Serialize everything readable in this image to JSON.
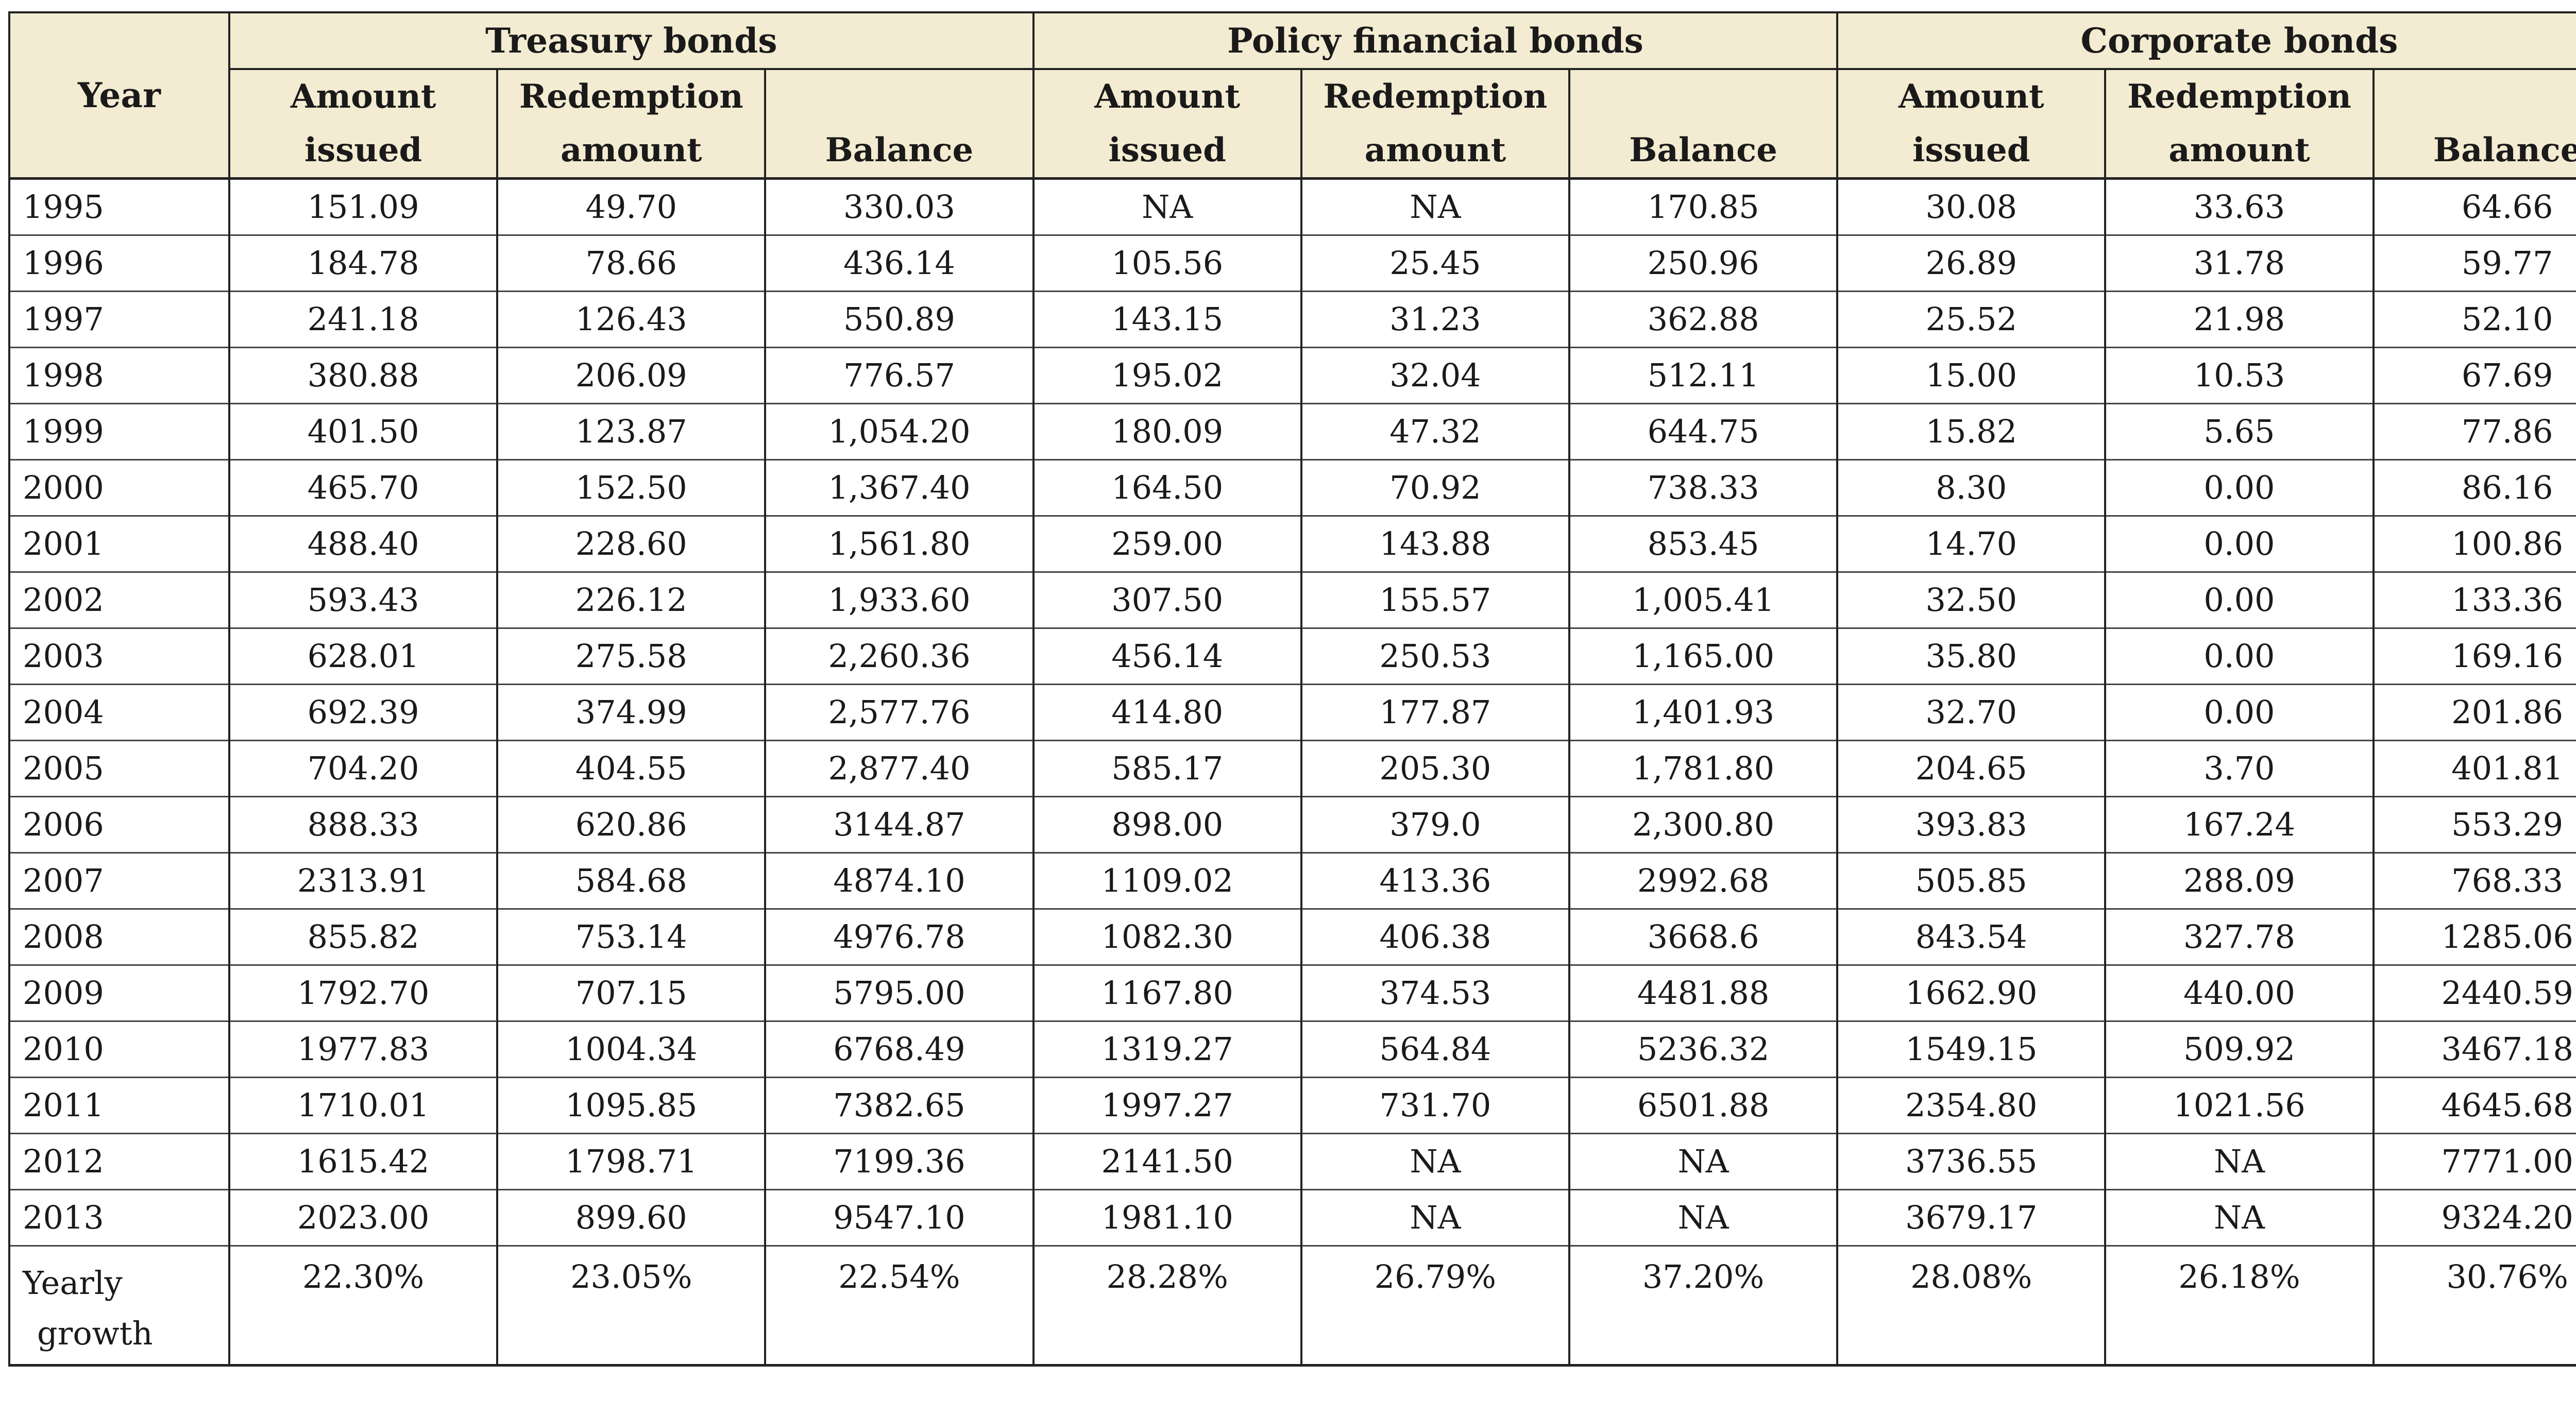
{
  "table": {
    "groups": [
      "Treasury bonds",
      "Policy financial bonds",
      "Corporate bonds"
    ],
    "year_header": "Year",
    "subheaders": [
      [
        "Amount",
        "issued"
      ],
      [
        "Redemption",
        "amount"
      ],
      [
        "",
        "Balance"
      ]
    ],
    "rows": [
      {
        "year": "1995",
        "cells": [
          "151.09",
          "49.70",
          "330.03",
          "NA",
          "NA",
          "170.85",
          "30.08",
          "33.63",
          "64.66"
        ]
      },
      {
        "year": "1996",
        "cells": [
          "184.78",
          "78.66",
          "436.14",
          "105.56",
          "25.45",
          "250.96",
          "26.89",
          "31.78",
          "59.77"
        ]
      },
      {
        "year": "1997",
        "cells": [
          "241.18",
          "126.43",
          "550.89",
          "143.15",
          "31.23",
          "362.88",
          "25.52",
          "21.98",
          "52.10"
        ]
      },
      {
        "year": "1998",
        "cells": [
          "380.88",
          "206.09",
          "776.57",
          "195.02",
          "32.04",
          "512.11",
          "15.00",
          "10.53",
          "67.69"
        ]
      },
      {
        "year": "1999",
        "cells": [
          "401.50",
          "123.87",
          "1,054.20",
          "180.09",
          "47.32",
          "644.75",
          "15.82",
          "5.65",
          "77.86"
        ]
      },
      {
        "year": "2000",
        "cells": [
          "465.70",
          "152.50",
          "1,367.40",
          "164.50",
          "70.92",
          "738.33",
          "8.30",
          "0.00",
          "86.16"
        ]
      },
      {
        "year": "2001",
        "cells": [
          "488.40",
          "228.60",
          "1,561.80",
          "259.00",
          "143.88",
          "853.45",
          "14.70",
          "0.00",
          "100.86"
        ]
      },
      {
        "year": "2002",
        "cells": [
          "593.43",
          "226.12",
          "1,933.60",
          "307.50",
          "155.57",
          "1,005.41",
          "32.50",
          "0.00",
          "133.36"
        ]
      },
      {
        "year": "2003",
        "cells": [
          "628.01",
          "275.58",
          "2,260.36",
          "456.14",
          "250.53",
          "1,165.00",
          "35.80",
          "0.00",
          "169.16"
        ]
      },
      {
        "year": "2004",
        "cells": [
          "692.39",
          "374.99",
          "2,577.76",
          "414.80",
          "177.87",
          "1,401.93",
          "32.70",
          "0.00",
          "201.86"
        ]
      },
      {
        "year": "2005",
        "cells": [
          "704.20",
          "404.55",
          "2,877.40",
          "585.17",
          "205.30",
          "1,781.80",
          "204.65",
          "3.70",
          "401.81"
        ]
      },
      {
        "year": "2006",
        "cells": [
          "888.33",
          "620.86",
          "3144.87",
          "898.00",
          "379.0",
          "2,300.80",
          "393.83",
          "167.24",
          "553.29"
        ]
      },
      {
        "year": "2007",
        "cells": [
          "2313.91",
          "584.68",
          "4874.10",
          "1109.02",
          "413.36",
          "2992.68",
          "505.85",
          "288.09",
          "768.33"
        ]
      },
      {
        "year": "2008",
        "cells": [
          "855.82",
          "753.14",
          "4976.78",
          "1082.30",
          "406.38",
          "3668.6",
          "843.54",
          "327.78",
          "1285.06"
        ]
      },
      {
        "year": "2009",
        "cells": [
          "1792.70",
          "707.15",
          "5795.00",
          "1167.80",
          "374.53",
          "4481.88",
          "1662.90",
          "440.00",
          "2440.59"
        ]
      },
      {
        "year": "2010",
        "cells": [
          "1977.83",
          "1004.34",
          "6768.49",
          "1319.27",
          "564.84",
          "5236.32",
          "1549.15",
          "509.92",
          "3467.18"
        ]
      },
      {
        "year": "2011",
        "cells": [
          "1710.01",
          "1095.85",
          "7382.65",
          "1997.27",
          "731.70",
          "6501.88",
          "2354.80",
          "1021.56",
          "4645.68"
        ]
      },
      {
        "year": "2012",
        "cells": [
          "1615.42",
          "1798.71",
          "7199.36",
          "2141.50",
          "NA",
          "NA",
          "3736.55",
          "NA",
          "7771.00"
        ]
      },
      {
        "year": "2013",
        "cells": [
          "2023.00",
          "899.60",
          "9547.10",
          "1981.10",
          "NA",
          "NA",
          "3679.17",
          "NA",
          "9324.20"
        ]
      }
    ],
    "growth": {
      "label": [
        "Yearly",
        "growth"
      ],
      "cells": [
        "22.30%",
        "23.05%",
        "22.54%",
        "28.28%",
        "26.79%",
        "37.20%",
        "28.08%",
        "26.18%",
        "30.76%"
      ]
    }
  }
}
